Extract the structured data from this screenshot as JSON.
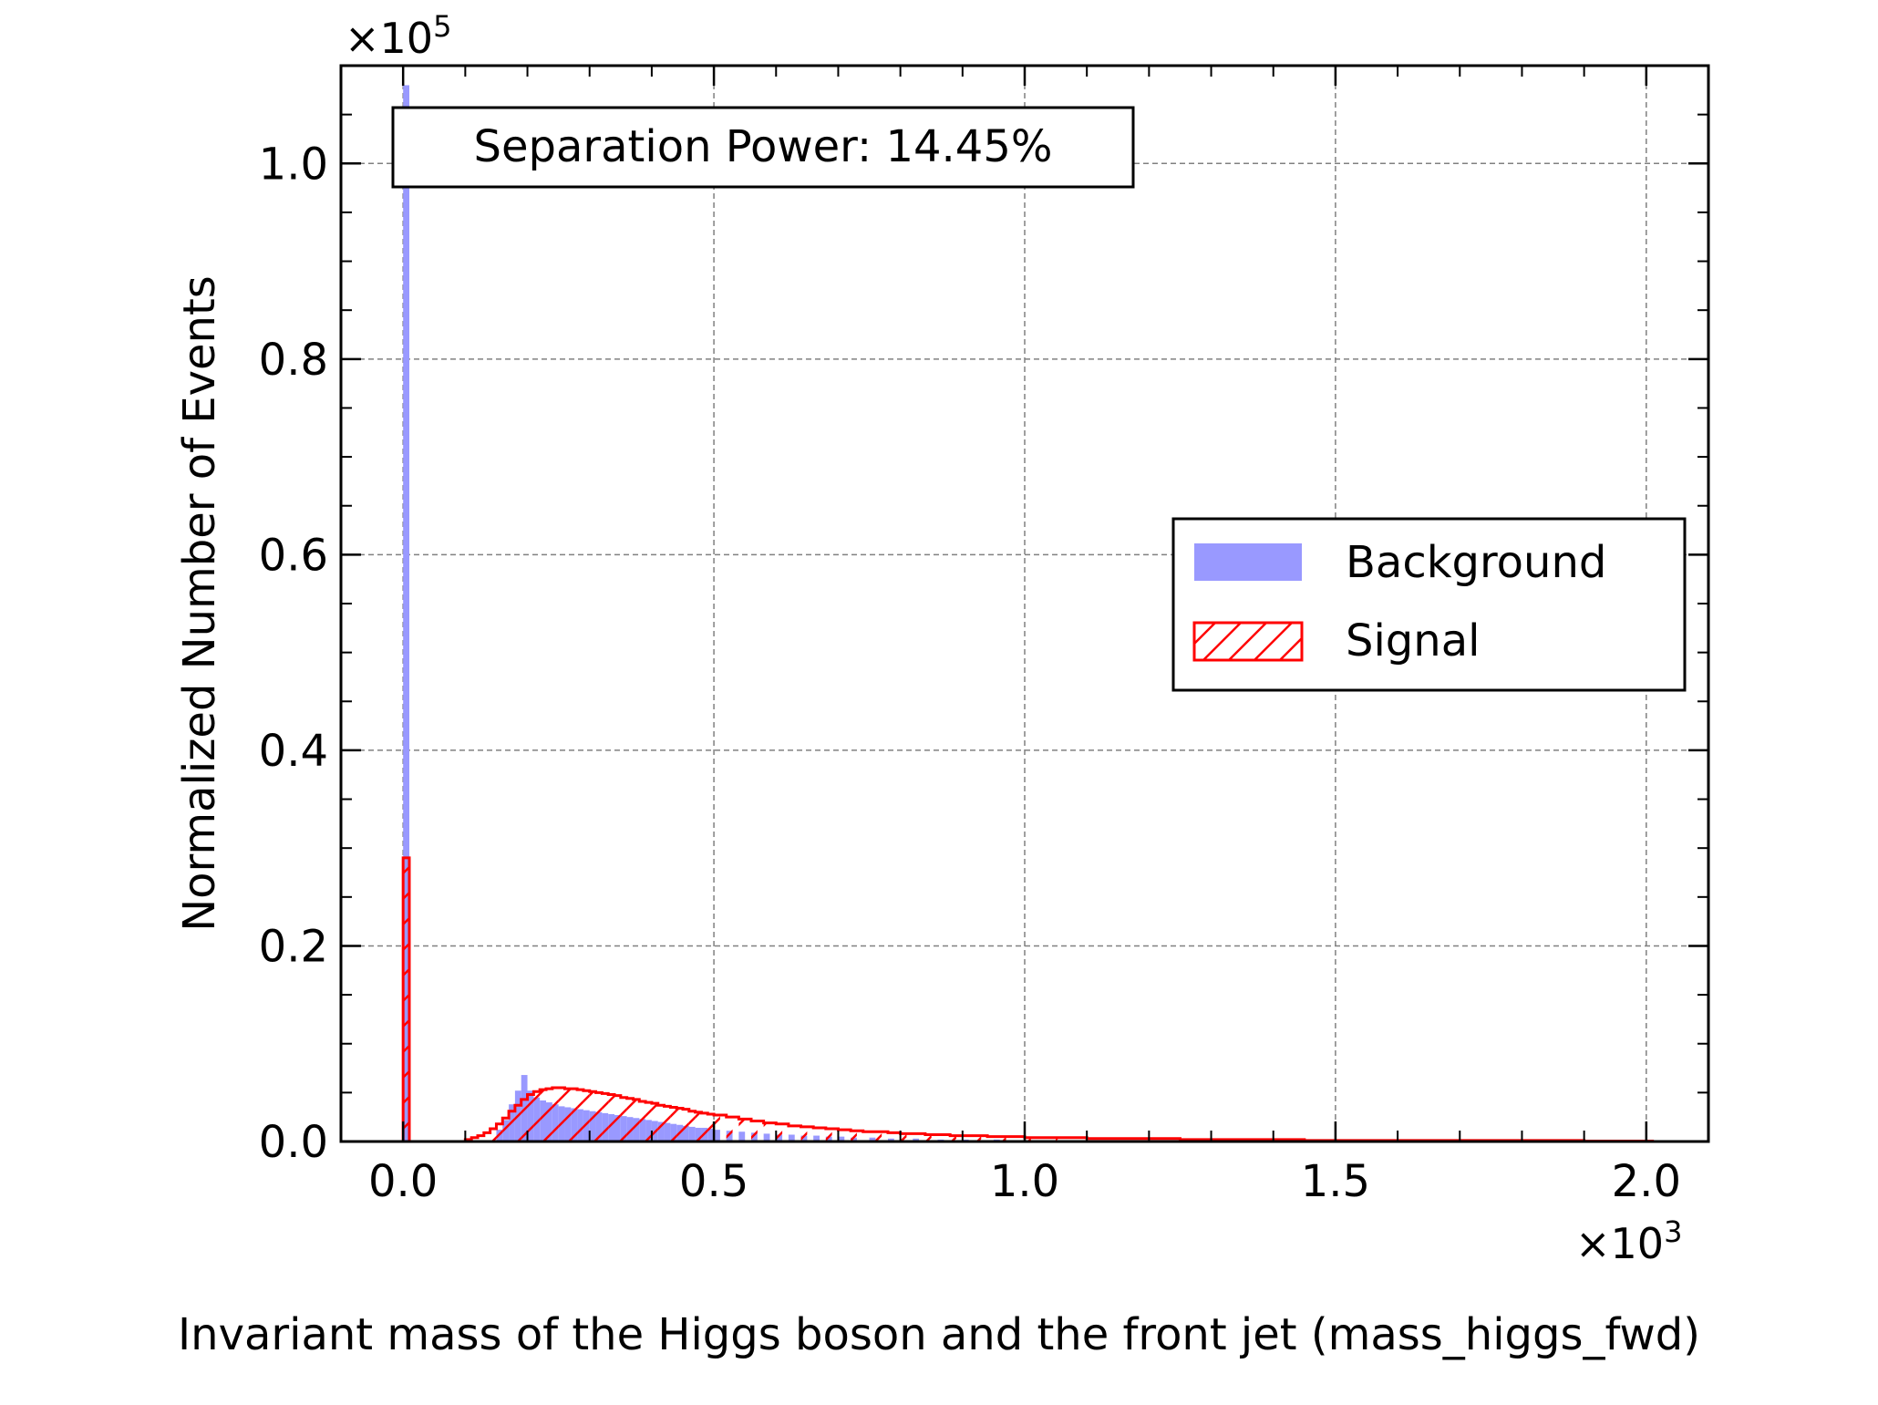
{
  "chart_data": {
    "type": "bar",
    "histtype": "step-overlay",
    "title": "",
    "xlabel": "Invariant mass of the Higgs boson and the front jet (mass_higgs_fwd)",
    "ylabel": "Normalized Number of Events",
    "x_multiplier": "×10",
    "x_exponent": "3",
    "y_multiplier": "×10",
    "y_exponent": "5",
    "xlim": [
      -0.1,
      2.1
    ],
    "ylim": [
      0,
      1.1
    ],
    "x_ticks": [
      "0.0",
      "0.5",
      "1.0",
      "1.5",
      "2.0"
    ],
    "y_ticks": [
      "0.0",
      "0.2",
      "0.4",
      "0.6",
      "0.8",
      "1.0"
    ],
    "grid": true,
    "legend_position": "right",
    "annotation": "Separation Power: 14.45%",
    "colors": {
      "background": "#9999ff",
      "signal": "#ff0000"
    },
    "bin_width": 0.01,
    "series": [
      {
        "name": "Background",
        "style": "filled",
        "bins": [
          [
            0.0,
            1.08
          ],
          [
            0.15,
            0.012
          ],
          [
            0.16,
            0.022
          ],
          [
            0.17,
            0.038
          ],
          [
            0.18,
            0.052
          ],
          [
            0.19,
            0.068
          ],
          [
            0.2,
            0.052
          ],
          [
            0.21,
            0.045
          ],
          [
            0.22,
            0.042
          ],
          [
            0.23,
            0.04
          ],
          [
            0.24,
            0.038
          ],
          [
            0.25,
            0.036
          ],
          [
            0.26,
            0.035
          ],
          [
            0.27,
            0.034
          ],
          [
            0.28,
            0.033
          ],
          [
            0.29,
            0.032
          ],
          [
            0.3,
            0.031
          ],
          [
            0.31,
            0.03
          ],
          [
            0.32,
            0.029
          ],
          [
            0.33,
            0.028
          ],
          [
            0.34,
            0.027
          ],
          [
            0.35,
            0.026
          ],
          [
            0.36,
            0.025
          ],
          [
            0.37,
            0.024
          ],
          [
            0.38,
            0.023
          ],
          [
            0.39,
            0.022
          ],
          [
            0.4,
            0.021
          ],
          [
            0.41,
            0.02
          ],
          [
            0.42,
            0.019
          ],
          [
            0.43,
            0.018
          ],
          [
            0.44,
            0.017
          ],
          [
            0.45,
            0.016
          ],
          [
            0.46,
            0.015
          ],
          [
            0.47,
            0.014
          ],
          [
            0.48,
            0.014
          ],
          [
            0.49,
            0.013
          ],
          [
            0.5,
            0.012
          ],
          [
            0.52,
            0.011
          ],
          [
            0.54,
            0.01
          ],
          [
            0.56,
            0.009
          ],
          [
            0.58,
            0.008
          ],
          [
            0.6,
            0.007
          ],
          [
            0.62,
            0.007
          ],
          [
            0.64,
            0.006
          ],
          [
            0.66,
            0.006
          ],
          [
            0.68,
            0.005
          ],
          [
            0.7,
            0.005
          ],
          [
            0.72,
            0.004
          ],
          [
            0.75,
            0.004
          ],
          [
            0.78,
            0.003
          ],
          [
            0.82,
            0.003
          ],
          [
            0.86,
            0.002
          ],
          [
            0.9,
            0.002
          ],
          [
            0.95,
            0.002
          ],
          [
            1.0,
            0.001
          ]
        ]
      },
      {
        "name": "Signal",
        "style": "hatched",
        "bins": [
          [
            0.0,
            0.29
          ],
          [
            0.1,
            0.002
          ],
          [
            0.11,
            0.004
          ],
          [
            0.12,
            0.006
          ],
          [
            0.13,
            0.009
          ],
          [
            0.14,
            0.013
          ],
          [
            0.15,
            0.018
          ],
          [
            0.16,
            0.024
          ],
          [
            0.17,
            0.031
          ],
          [
            0.18,
            0.037
          ],
          [
            0.19,
            0.043
          ],
          [
            0.2,
            0.048
          ],
          [
            0.21,
            0.051
          ],
          [
            0.22,
            0.053
          ],
          [
            0.23,
            0.054
          ],
          [
            0.24,
            0.055
          ],
          [
            0.25,
            0.055
          ],
          [
            0.26,
            0.054
          ],
          [
            0.27,
            0.054
          ],
          [
            0.28,
            0.053
          ],
          [
            0.29,
            0.052
          ],
          [
            0.3,
            0.051
          ],
          [
            0.31,
            0.05
          ],
          [
            0.32,
            0.049
          ],
          [
            0.33,
            0.048
          ],
          [
            0.34,
            0.047
          ],
          [
            0.35,
            0.045
          ],
          [
            0.36,
            0.044
          ],
          [
            0.37,
            0.043
          ],
          [
            0.38,
            0.041
          ],
          [
            0.39,
            0.04
          ],
          [
            0.4,
            0.039
          ],
          [
            0.41,
            0.037
          ],
          [
            0.42,
            0.036
          ],
          [
            0.43,
            0.035
          ],
          [
            0.44,
            0.034
          ],
          [
            0.45,
            0.033
          ],
          [
            0.46,
            0.031
          ],
          [
            0.47,
            0.03
          ],
          [
            0.48,
            0.029
          ],
          [
            0.49,
            0.028
          ],
          [
            0.5,
            0.027
          ],
          [
            0.52,
            0.025
          ],
          [
            0.54,
            0.023
          ],
          [
            0.56,
            0.021
          ],
          [
            0.58,
            0.019
          ],
          [
            0.6,
            0.018
          ],
          [
            0.62,
            0.016
          ],
          [
            0.64,
            0.015
          ],
          [
            0.66,
            0.014
          ],
          [
            0.68,
            0.013
          ],
          [
            0.7,
            0.012
          ],
          [
            0.72,
            0.011
          ],
          [
            0.74,
            0.01
          ],
          [
            0.76,
            0.01
          ],
          [
            0.78,
            0.009
          ],
          [
            0.8,
            0.008
          ],
          [
            0.82,
            0.008
          ],
          [
            0.84,
            0.007
          ],
          [
            0.86,
            0.007
          ],
          [
            0.88,
            0.006
          ],
          [
            0.9,
            0.006
          ],
          [
            0.92,
            0.006
          ],
          [
            0.94,
            0.005
          ],
          [
            0.96,
            0.005
          ],
          [
            0.98,
            0.005
          ],
          [
            1.0,
            0.004
          ],
          [
            1.05,
            0.004
          ],
          [
            1.1,
            0.003
          ],
          [
            1.15,
            0.003
          ],
          [
            1.2,
            0.003
          ],
          [
            1.25,
            0.002
          ],
          [
            1.3,
            0.002
          ],
          [
            1.35,
            0.002
          ],
          [
            1.4,
            0.002
          ],
          [
            1.45,
            0.001
          ],
          [
            1.5,
            0.001
          ],
          [
            1.6,
            0.001
          ],
          [
            1.7,
            0.001
          ],
          [
            1.8,
            0.001
          ],
          [
            1.9,
            0.0005
          ],
          [
            2.0,
            0.0005
          ]
        ]
      }
    ]
  }
}
